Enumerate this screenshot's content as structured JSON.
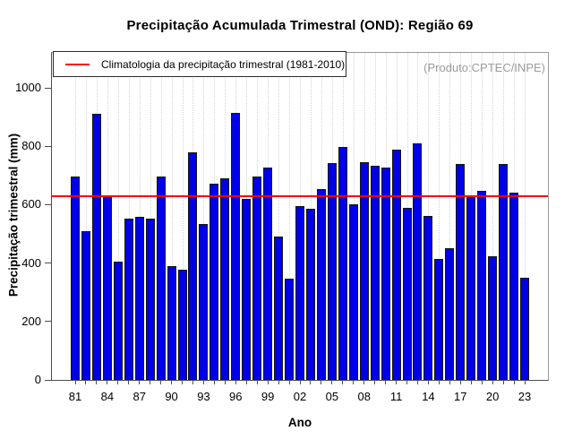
{
  "title": "Precipitação Acumulada Trimestral (OND): Região 69",
  "produto_label": "(Produto:CPTEC/INPE)",
  "legend": {
    "label": "Climatologia da precipitação trimestral (1981-2010)",
    "line_color": "#ff0000"
  },
  "chart_data": {
    "type": "bar",
    "title": "Precipitação Acumulada Trimestral (OND): Região 69",
    "xlabel": "Ano",
    "ylabel": "Precipitação trimestral (mm)",
    "grid": "vertical-dotted",
    "legend_position": "top-left",
    "years": [
      1981,
      1982,
      1983,
      1984,
      1985,
      1986,
      1987,
      1988,
      1989,
      1990,
      1991,
      1992,
      1993,
      1994,
      1995,
      1996,
      1997,
      1998,
      1999,
      2000,
      2001,
      2002,
      2003,
      2004,
      2005,
      2006,
      2007,
      2008,
      2009,
      2010,
      2011,
      2012,
      2013,
      2014,
      2015,
      2016,
      2017,
      2018,
      2019,
      2020,
      2021,
      2022,
      2023
    ],
    "values": [
      697,
      510,
      910,
      626,
      406,
      552,
      557,
      551,
      697,
      389,
      376,
      780,
      533,
      672,
      690,
      915,
      620,
      698,
      728,
      490,
      347,
      595,
      586,
      653,
      742,
      798,
      602,
      745,
      733,
      727,
      790,
      589,
      810,
      560,
      413,
      450,
      739,
      629,
      648,
      423,
      740,
      640,
      350
    ],
    "y_ticks": [
      0,
      200,
      400,
      600,
      800,
      1000
    ],
    "ylim": [
      0,
      1120
    ],
    "x_tick_labels": [
      "81",
      "84",
      "87",
      "90",
      "93",
      "96",
      "99",
      "02",
      "05",
      "08",
      "11",
      "14",
      "17",
      "20",
      "23"
    ],
    "x_tick_label_every": 3,
    "climatology_line": {
      "value": 628,
      "color": "#ff0000"
    },
    "bar_fill": "#0000e8",
    "bar_border": "#161616"
  }
}
